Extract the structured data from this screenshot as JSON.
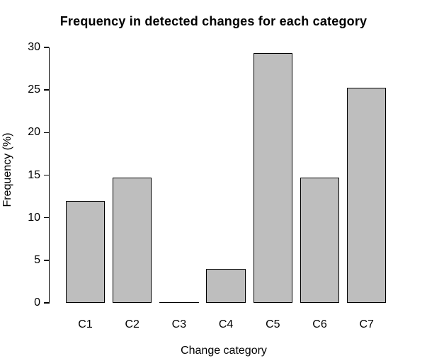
{
  "chart_data": {
    "type": "bar",
    "title": "Frequency in detected changes for each category",
    "xlabel": "Change category",
    "ylabel": "Frequency (%)",
    "categories": [
      "C1",
      "C2",
      "C3",
      "C4",
      "C5",
      "C6",
      "C7"
    ],
    "values": [
      12.0,
      14.7,
      0.0,
      4.0,
      29.3,
      14.7,
      25.3
    ],
    "yticks": [
      0,
      5,
      10,
      15,
      20,
      25,
      30
    ],
    "ylim": [
      0,
      30
    ],
    "grid": false,
    "legend": false,
    "colors": {
      "bar_fill": "#BEBEBE",
      "bar_border": "#000000",
      "axis": "#000000",
      "text": "#000000",
      "background": "#FFFFFF"
    }
  }
}
